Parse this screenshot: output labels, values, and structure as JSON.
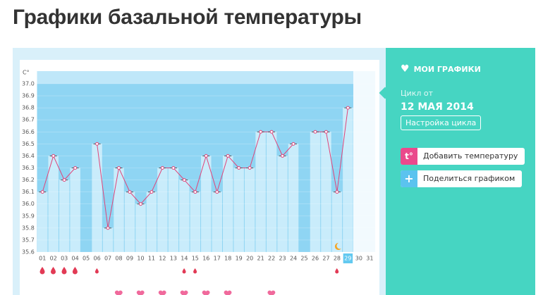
{
  "header": {
    "title": "Графики базальной температуры"
  },
  "chart_data": {
    "type": "bar",
    "y_label": "C°",
    "categories": [
      "01",
      "02",
      "03",
      "04",
      "05",
      "06",
      "07",
      "08",
      "09",
      "10",
      "11",
      "12",
      "13",
      "14",
      "15",
      "16",
      "17",
      "18",
      "19",
      "20",
      "21",
      "22",
      "23",
      "24",
      "25",
      "26",
      "27",
      "28",
      "29",
      "30",
      "31"
    ],
    "values": [
      36.1,
      36.4,
      36.2,
      36.3,
      null,
      36.5,
      35.8,
      36.3,
      36.1,
      36.0,
      36.1,
      36.3,
      36.3,
      36.2,
      36.1,
      36.4,
      36.1,
      36.4,
      36.3,
      36.3,
      36.6,
      36.6,
      36.4,
      36.5,
      null,
      36.6,
      36.6,
      36.1,
      36.8,
      null,
      null
    ],
    "color": "#c9ecfb",
    "line_color": "#e0457a",
    "highlight_category": "29",
    "ylim": [
      35.6,
      37.0
    ],
    "yticks": [
      35.6,
      35.7,
      35.8,
      35.9,
      {
        "value": 36,
        "label": "36.0"
      },
      36.1,
      36.2,
      36.3,
      36.4,
      36.5,
      36.6,
      36.7,
      36.8,
      36.9,
      {
        "value": 37,
        "label": "37.0"
      }
    ],
    "grid": true
  },
  "sidebar": {
    "my_charts": "МОИ ГРАФИКИ",
    "cycle_from": "Цикл от",
    "cycle_date": "12 МАЯ 2014",
    "settings_button": "Настройка цикла",
    "add_icon": "t°",
    "add_button": "Добавить температуру",
    "share_button": "Поделиться графиком"
  }
}
